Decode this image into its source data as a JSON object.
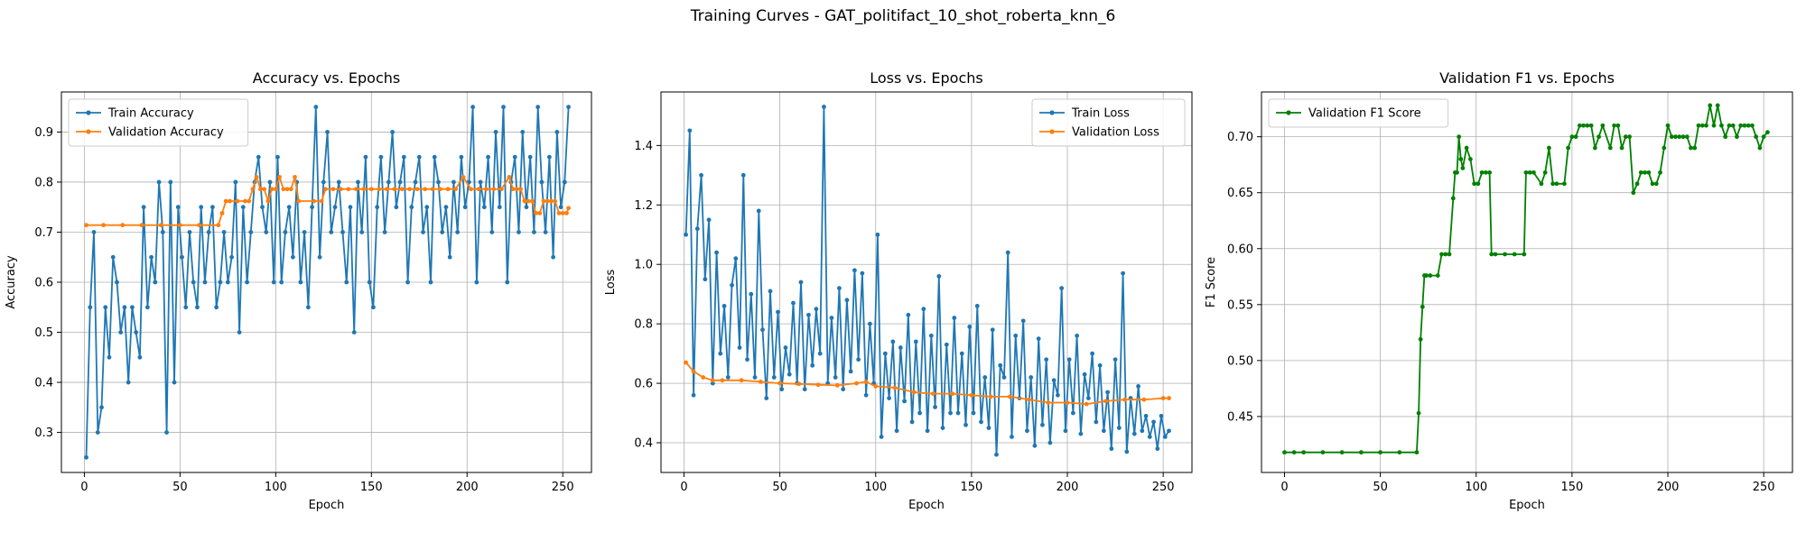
{
  "figure": {
    "suptitle": "Training Curves - GAT_politifact_10_shot_roberta_knn_6"
  },
  "colors": {
    "train": "#1f77b4",
    "validation": "#ff7f0e",
    "f1": "#008000",
    "grid": "#b0b0b0"
  },
  "chart_data": [
    {
      "type": "line",
      "title": "Accuracy vs. Epochs",
      "xlabel": "Epoch",
      "ylabel": "Accuracy",
      "xlim": [
        -12,
        265
      ],
      "ylim": [
        0.22,
        0.98
      ],
      "xticks": [
        0,
        50,
        100,
        150,
        200,
        250
      ],
      "yticks": [
        0.3,
        0.4,
        0.5,
        0.6,
        0.7,
        0.8,
        0.9
      ],
      "grid": true,
      "legend_loc": "upper-left",
      "series": [
        {
          "name": "Train Accuracy",
          "color": "#1f77b4",
          "x": [
            1,
            3,
            5,
            7,
            9,
            11,
            13,
            15,
            17,
            19,
            21,
            23,
            25,
            27,
            29,
            31,
            33,
            35,
            37,
            39,
            41,
            43,
            45,
            47,
            49,
            51,
            53,
            55,
            57,
            59,
            61,
            63,
            65,
            67,
            69,
            71,
            73,
            75,
            77,
            79,
            81,
            83,
            85,
            87,
            89,
            91,
            93,
            95,
            97,
            99,
            101,
            103,
            105,
            107,
            109,
            111,
            113,
            115,
            117,
            119,
            121,
            123,
            125,
            127,
            129,
            131,
            133,
            135,
            137,
            139,
            141,
            143,
            145,
            147,
            149,
            151,
            153,
            155,
            157,
            159,
            161,
            163,
            165,
            167,
            169,
            171,
            173,
            175,
            177,
            179,
            181,
            183,
            185,
            187,
            189,
            191,
            193,
            195,
            197,
            199,
            201,
            203,
            205,
            207,
            209,
            211,
            213,
            215,
            217,
            219,
            221,
            223,
            225,
            227,
            229,
            231,
            233,
            235,
            237,
            239,
            241,
            243,
            245,
            247,
            249,
            251,
            253
          ],
          "y": [
            0.25,
            0.55,
            0.7,
            0.3,
            0.35,
            0.55,
            0.45,
            0.65,
            0.6,
            0.5,
            0.55,
            0.4,
            0.55,
            0.5,
            0.45,
            0.75,
            0.55,
            0.65,
            0.6,
            0.8,
            0.7,
            0.3,
            0.8,
            0.4,
            0.75,
            0.65,
            0.55,
            0.7,
            0.6,
            0.55,
            0.75,
            0.6,
            0.7,
            0.75,
            0.55,
            0.6,
            0.7,
            0.6,
            0.65,
            0.8,
            0.5,
            0.75,
            0.6,
            0.7,
            0.8,
            0.85,
            0.75,
            0.7,
            0.8,
            0.6,
            0.85,
            0.6,
            0.7,
            0.75,
            0.65,
            0.8,
            0.6,
            0.7,
            0.55,
            0.75,
            0.95,
            0.65,
            0.8,
            0.9,
            0.7,
            0.75,
            0.8,
            0.7,
            0.6,
            0.75,
            0.5,
            0.8,
            0.7,
            0.85,
            0.6,
            0.55,
            0.75,
            0.85,
            0.7,
            0.8,
            0.9,
            0.75,
            0.8,
            0.85,
            0.6,
            0.75,
            0.8,
            0.85,
            0.7,
            0.75,
            0.6,
            0.85,
            0.8,
            0.7,
            0.75,
            0.65,
            0.8,
            0.7,
            0.85,
            0.75,
            0.8,
            0.95,
            0.6,
            0.8,
            0.75,
            0.85,
            0.7,
            0.9,
            0.75,
            0.95,
            0.6,
            0.8,
            0.85,
            0.7,
            0.9,
            0.75,
            0.85,
            0.7,
            0.95,
            0.8,
            0.7,
            0.85,
            0.65,
            0.9,
            0.75,
            0.8,
            0.95
          ]
        },
        {
          "name": "Validation Accuracy",
          "color": "#ff7f0e",
          "x": [
            1,
            10,
            20,
            30,
            40,
            50,
            60,
            70,
            72,
            74,
            76,
            80,
            84,
            86,
            88,
            90,
            92,
            94,
            96,
            98,
            100,
            102,
            104,
            106,
            108,
            110,
            112,
            120,
            124,
            126,
            130,
            134,
            138,
            142,
            146,
            150,
            154,
            158,
            162,
            166,
            170,
            174,
            178,
            182,
            186,
            190,
            194,
            198,
            202,
            206,
            210,
            214,
            218,
            222,
            224,
            226,
            228,
            230,
            232,
            234,
            236,
            238,
            240,
            242,
            244,
            246,
            248,
            250,
            252,
            253
          ],
          "y": [
            0.714,
            0.714,
            0.714,
            0.714,
            0.714,
            0.714,
            0.714,
            0.714,
            0.738,
            0.762,
            0.762,
            0.762,
            0.762,
            0.762,
            0.786,
            0.81,
            0.786,
            0.786,
            0.762,
            0.786,
            0.786,
            0.81,
            0.786,
            0.786,
            0.786,
            0.81,
            0.762,
            0.762,
            0.762,
            0.786,
            0.786,
            0.786,
            0.786,
            0.786,
            0.786,
            0.786,
            0.786,
            0.786,
            0.786,
            0.786,
            0.786,
            0.786,
            0.786,
            0.786,
            0.786,
            0.786,
            0.786,
            0.81,
            0.786,
            0.786,
            0.786,
            0.786,
            0.786,
            0.81,
            0.786,
            0.786,
            0.786,
            0.762,
            0.762,
            0.762,
            0.738,
            0.738,
            0.762,
            0.762,
            0.762,
            0.762,
            0.738,
            0.738,
            0.738,
            0.748
          ]
        }
      ]
    },
    {
      "type": "line",
      "title": "Loss vs. Epochs",
      "xlabel": "Epoch",
      "ylabel": "Loss",
      "xlim": [
        -12,
        265
      ],
      "ylim": [
        0.3,
        1.58
      ],
      "xticks": [
        0,
        50,
        100,
        150,
        200,
        250
      ],
      "yticks": [
        0.4,
        0.6,
        0.8,
        1.0,
        1.2,
        1.4
      ],
      "grid": true,
      "legend_loc": "upper-right",
      "series": [
        {
          "name": "Train Loss",
          "color": "#1f77b4",
          "x": [
            1,
            3,
            5,
            7,
            9,
            11,
            13,
            15,
            17,
            19,
            21,
            23,
            25,
            27,
            29,
            31,
            33,
            35,
            37,
            39,
            41,
            43,
            45,
            47,
            49,
            51,
            53,
            55,
            57,
            59,
            61,
            63,
            65,
            67,
            69,
            71,
            73,
            75,
            77,
            79,
            81,
            83,
            85,
            87,
            89,
            91,
            93,
            95,
            97,
            99,
            101,
            103,
            105,
            107,
            109,
            111,
            113,
            115,
            117,
            119,
            121,
            123,
            125,
            127,
            129,
            131,
            133,
            135,
            137,
            139,
            141,
            143,
            145,
            147,
            149,
            151,
            153,
            155,
            157,
            159,
            161,
            163,
            165,
            167,
            169,
            171,
            173,
            175,
            177,
            179,
            181,
            183,
            185,
            187,
            189,
            191,
            193,
            195,
            197,
            199,
            201,
            203,
            205,
            207,
            209,
            211,
            213,
            215,
            217,
            219,
            221,
            223,
            225,
            227,
            229,
            231,
            233,
            235,
            237,
            239,
            241,
            243,
            245,
            247,
            249,
            251,
            253
          ],
          "y": [
            1.1,
            1.45,
            0.56,
            1.12,
            1.3,
            0.95,
            1.15,
            0.6,
            1.04,
            0.7,
            0.86,
            0.62,
            0.93,
            1.02,
            0.72,
            1.3,
            0.68,
            0.9,
            0.62,
            1.18,
            0.78,
            0.55,
            0.91,
            0.62,
            0.84,
            0.58,
            0.72,
            0.63,
            0.87,
            0.6,
            0.94,
            0.58,
            0.83,
            0.66,
            0.85,
            0.7,
            1.53,
            0.6,
            0.82,
            0.62,
            0.92,
            0.58,
            0.88,
            0.64,
            0.98,
            0.68,
            0.97,
            0.56,
            0.8,
            0.6,
            1.1,
            0.42,
            0.7,
            0.55,
            0.74,
            0.44,
            0.72,
            0.54,
            0.83,
            0.47,
            0.74,
            0.5,
            0.85,
            0.44,
            0.76,
            0.52,
            0.96,
            0.45,
            0.73,
            0.5,
            0.82,
            0.5,
            0.7,
            0.46,
            0.79,
            0.5,
            0.86,
            0.47,
            0.62,
            0.45,
            0.78,
            0.36,
            0.66,
            0.62,
            1.04,
            0.42,
            0.76,
            0.55,
            0.81,
            0.44,
            0.62,
            0.39,
            0.75,
            0.46,
            0.68,
            0.4,
            0.61,
            0.56,
            0.92,
            0.44,
            0.68,
            0.5,
            0.76,
            0.43,
            0.63,
            0.55,
            0.7,
            0.47,
            0.66,
            0.44,
            0.57,
            0.38,
            0.68,
            0.45,
            0.97,
            0.37,
            0.55,
            0.43,
            0.59,
            0.44,
            0.49,
            0.42,
            0.47,
            0.38,
            0.49,
            0.42,
            0.44
          ]
        },
        {
          "name": "Validation Loss",
          "color": "#ff7f0e",
          "x": [
            1,
            5,
            10,
            15,
            20,
            30,
            40,
            50,
            60,
            70,
            80,
            90,
            95,
            100,
            110,
            120,
            130,
            140,
            150,
            160,
            170,
            180,
            190,
            200,
            210,
            220,
            230,
            240,
            250,
            253
          ],
          "y": [
            0.67,
            0.64,
            0.62,
            0.61,
            0.61,
            0.61,
            0.605,
            0.6,
            0.598,
            0.595,
            0.593,
            0.6,
            0.605,
            0.59,
            0.585,
            0.57,
            0.565,
            0.565,
            0.56,
            0.555,
            0.555,
            0.545,
            0.535,
            0.535,
            0.53,
            0.54,
            0.545,
            0.545,
            0.55,
            0.55
          ]
        }
      ]
    },
    {
      "type": "line",
      "title": "Validation F1 vs. Epochs",
      "xlabel": "Epoch",
      "ylabel": "F1 Score",
      "xlim": [
        -12,
        265
      ],
      "ylim": [
        0.4,
        0.74
      ],
      "xticks": [
        0,
        50,
        100,
        150,
        200,
        250
      ],
      "yticks": [
        0.45,
        0.5,
        0.55,
        0.6,
        0.65,
        0.7
      ],
      "grid": true,
      "legend_loc": "upper-left",
      "series": [
        {
          "name": "Validation F1 Score",
          "color": "#008000",
          "x": [
            0,
            5,
            10,
            20,
            30,
            40,
            50,
            60,
            69,
            70,
            71,
            72,
            73,
            74,
            76,
            80,
            82,
            84,
            86,
            88,
            89,
            90,
            91,
            92,
            93,
            95,
            97,
            99,
            101,
            103,
            105,
            107,
            108,
            110,
            115,
            120,
            125,
            126,
            128,
            130,
            134,
            136,
            138,
            140,
            142,
            146,
            148,
            150,
            152,
            154,
            156,
            158,
            160,
            162,
            164,
            166,
            170,
            172,
            174,
            176,
            178,
            180,
            182,
            184,
            186,
            188,
            190,
            192,
            194,
            196,
            198,
            200,
            202,
            204,
            206,
            208,
            210,
            212,
            214,
            216,
            218,
            220,
            222,
            224,
            226,
            228,
            230,
            232,
            234,
            236,
            238,
            240,
            242,
            244,
            246,
            248,
            250,
            252
          ],
          "y": [
            0.418,
            0.418,
            0.418,
            0.418,
            0.418,
            0.418,
            0.418,
            0.418,
            0.418,
            0.453,
            0.519,
            0.548,
            0.576,
            0.576,
            0.576,
            0.576,
            0.595,
            0.595,
            0.595,
            0.645,
            0.668,
            0.668,
            0.7,
            0.68,
            0.672,
            0.69,
            0.68,
            0.658,
            0.658,
            0.668,
            0.668,
            0.668,
            0.595,
            0.595,
            0.595,
            0.595,
            0.595,
            0.668,
            0.668,
            0.668,
            0.658,
            0.668,
            0.69,
            0.658,
            0.658,
            0.658,
            0.69,
            0.7,
            0.7,
            0.71,
            0.71,
            0.71,
            0.71,
            0.69,
            0.7,
            0.71,
            0.69,
            0.71,
            0.71,
            0.69,
            0.7,
            0.7,
            0.65,
            0.658,
            0.668,
            0.668,
            0.668,
            0.658,
            0.658,
            0.668,
            0.69,
            0.71,
            0.7,
            0.7,
            0.7,
            0.7,
            0.7,
            0.69,
            0.69,
            0.71,
            0.71,
            0.71,
            0.728,
            0.71,
            0.728,
            0.71,
            0.7,
            0.71,
            0.71,
            0.7,
            0.71,
            0.71,
            0.71,
            0.71,
            0.7,
            0.69,
            0.7,
            0.704
          ]
        }
      ]
    }
  ]
}
